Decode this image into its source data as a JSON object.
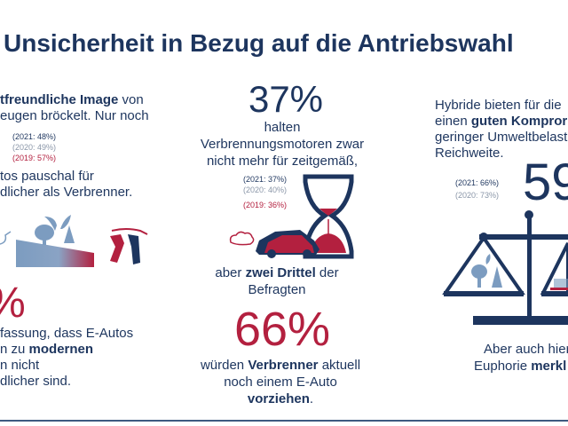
{
  "title": "Unsicherheit in Bezug auf die Antriebswahl",
  "colors": {
    "navy": "#1d355e",
    "red": "#b3203f",
    "gray": "#8a96a8",
    "lightblue": "#7c9cc0"
  },
  "left": {
    "line1_bold": "tfreundliche Image",
    "line1_rest": " von",
    "line2": "eugen bröckelt. Nur noch",
    "notes": [
      "(2021: 48%)",
      "(2020: 49%)",
      "(2019: 57%)"
    ],
    "line3": "tos pauschal für",
    "line4": "dlicher als Verbrenner.",
    "big_value": "%",
    "b_line1": "fassung, dass E-Autos",
    "b_line2_pre": "n zu ",
    "b_line2_bold": "modernen",
    "b_line3": "n nicht",
    "b_line4": "dlicher sind.",
    "icons": [
      "plug-icon",
      "landscape-trees-icon",
      "fuel-nozzles-icon"
    ]
  },
  "center": {
    "value": "37%",
    "line1": "halten",
    "line2": "Verbrennungsmotoren zwar",
    "line3": "nicht mehr für zeitgemäß,",
    "notes": [
      "(2021: 37%)",
      "(2020: 40%)",
      "(2019: 36%)"
    ],
    "mid_pre": "aber ",
    "mid_bold": "zwei Drittel",
    "mid_post": " der",
    "mid_line2": "Befragten",
    "value2": "66%",
    "b_line1_pre": "würden ",
    "b_line1_bold": "Verbrenner",
    "b_line1_post": " aktuell",
    "b_line2": "noch einem E-Auto",
    "b_line3_bold": "vorziehen",
    "b_line3_post": ".",
    "icons": [
      "car-icon",
      "hourglass-icon"
    ]
  },
  "right": {
    "line1": "Hybride bieten für die",
    "line2_pre": "einen ",
    "line2_bold": "guten Kompror",
    "line3": "geringer Umweltbelast",
    "line4": "Reichweite.",
    "value": "59",
    "notes": [
      "(2021: 66%)",
      "(2020: 73%)"
    ],
    "b_line1": "Aber auch hier",
    "b_line2_pre": "Euphorie ",
    "b_line2_bold": "merkl",
    "icons": [
      "balance-scale-icon"
    ]
  }
}
